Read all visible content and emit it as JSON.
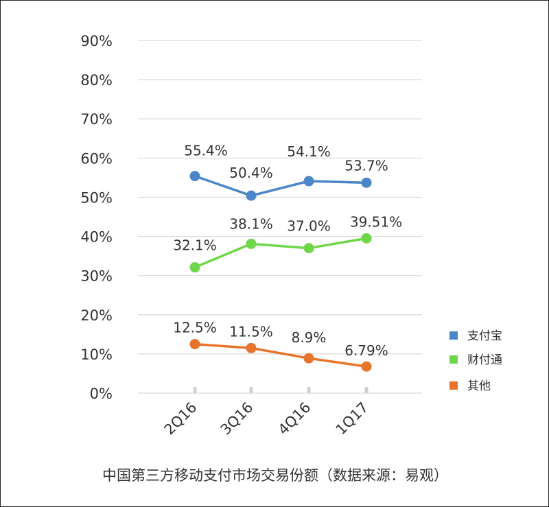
{
  "chart_data": {
    "type": "line",
    "title": "",
    "caption": "中国第三方移动支付市场交易份额（数据来源：易观）",
    "categories": [
      "2Q16",
      "3Q16",
      "4Q16",
      "1Q17"
    ],
    "y_ticks": [
      "0%",
      "10%",
      "20%",
      "30%",
      "40%",
      "50%",
      "60%",
      "70%",
      "80%",
      "90%"
    ],
    "ylim": [
      0,
      90
    ],
    "grid": true,
    "legend_position": "right",
    "series": [
      {
        "name": "支付宝",
        "color": "#4A86C8",
        "values": [
          55.4,
          50.4,
          54.1,
          53.7
        ],
        "labels": [
          "55.4%",
          "50.4%",
          "54.1%",
          "53.7%"
        ]
      },
      {
        "name": "财付通",
        "color": "#6FD64A",
        "values": [
          32.1,
          38.1,
          37.0,
          39.51
        ],
        "labels": [
          "32.1%",
          "38.1%",
          "37.0%",
          "39.51%"
        ]
      },
      {
        "name": "其他",
        "color": "#E8732A",
        "values": [
          12.5,
          11.5,
          8.9,
          6.79
        ],
        "labels": [
          "12.5%",
          "11.5%",
          "8.9%",
          "6.79%"
        ]
      }
    ]
  }
}
